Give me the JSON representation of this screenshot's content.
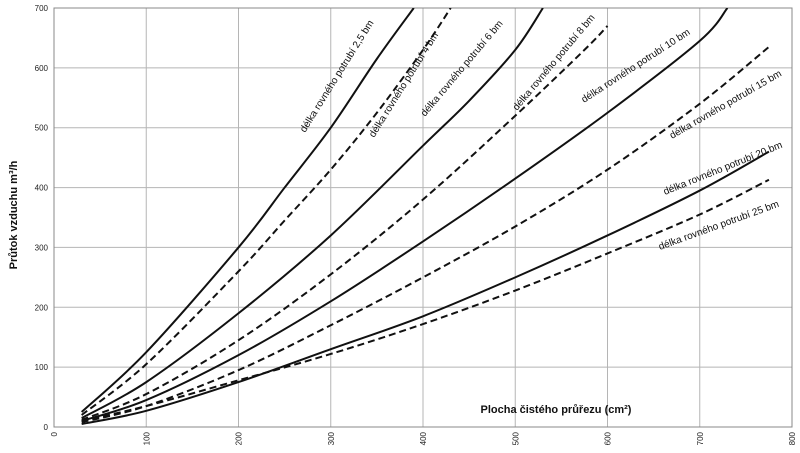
{
  "chart_data": {
    "type": "line",
    "xlabel": "Plocha čistého průřezu (cm²)",
    "ylabel": "Průtok vzduchu m³/h",
    "xlim": [
      0,
      800
    ],
    "ylim": [
      0,
      700
    ],
    "x_ticks": [
      "0",
      "100",
      "200",
      "300",
      "400",
      "500",
      "600",
      "700",
      "800"
    ],
    "y_ticks": [
      "0",
      "100",
      "200",
      "300",
      "400",
      "500",
      "600",
      "700"
    ],
    "grid": true,
    "colors": {
      "line": "#111111",
      "grid": "#b5b5b5"
    },
    "series": [
      {
        "name": "délka rovného potrubí 2,5 bm",
        "style": "solid",
        "x": [
          30,
          100,
          200,
          250,
          300,
          350,
          390
        ],
        "y": [
          25,
          125,
          300,
          400,
          500,
          615,
          700
        ]
      },
      {
        "name": "délka rovného potrubí 4 bm",
        "style": "dashed",
        "x": [
          30,
          100,
          200,
          250,
          300,
          350,
          400,
          430
        ],
        "y": [
          20,
          105,
          260,
          345,
          430,
          525,
          630,
          700
        ]
      },
      {
        "name": "délka rovného potrubí 6 bm",
        "style": "solid",
        "x": [
          30,
          100,
          200,
          300,
          400,
          450,
          500,
          530
        ],
        "y": [
          15,
          75,
          190,
          320,
          470,
          545,
          630,
          700
        ]
      },
      {
        "name": "délka rovného potrubí 8 bm",
        "style": "dashed",
        "x": [
          30,
          100,
          200,
          300,
          400,
          500,
          575,
          600
        ],
        "y": [
          12,
          55,
          145,
          255,
          380,
          520,
          630,
          670
        ]
      },
      {
        "name": "délka rovného potrubí 10 bm",
        "style": "solid",
        "x": [
          30,
          100,
          200,
          300,
          400,
          500,
          600,
          700,
          730
        ],
        "y": [
          10,
          45,
          120,
          210,
          310,
          415,
          525,
          645,
          700
        ]
      },
      {
        "name": "délka rovného potrubí 15 bm",
        "style": "dashed",
        "x": [
          30,
          100,
          200,
          300,
          400,
          500,
          600,
          700,
          775
        ],
        "y": [
          8,
          35,
          95,
          170,
          250,
          335,
          430,
          540,
          635
        ]
      },
      {
        "name": "délka rovného potrubí 20 bm",
        "style": "solid",
        "x": [
          30,
          100,
          200,
          300,
          400,
          500,
          600,
          700,
          775
        ],
        "y": [
          5,
          27,
          75,
          130,
          185,
          250,
          320,
          395,
          460
        ]
      },
      {
        "name": "délka rovného potrubí 25 bm",
        "style": "dashed",
        "x": [
          30,
          100,
          200,
          300,
          400,
          500,
          600,
          700,
          775
        ],
        "y": [
          10,
          35,
          78,
          122,
          172,
          228,
          290,
          355,
          413
        ]
      }
    ]
  }
}
